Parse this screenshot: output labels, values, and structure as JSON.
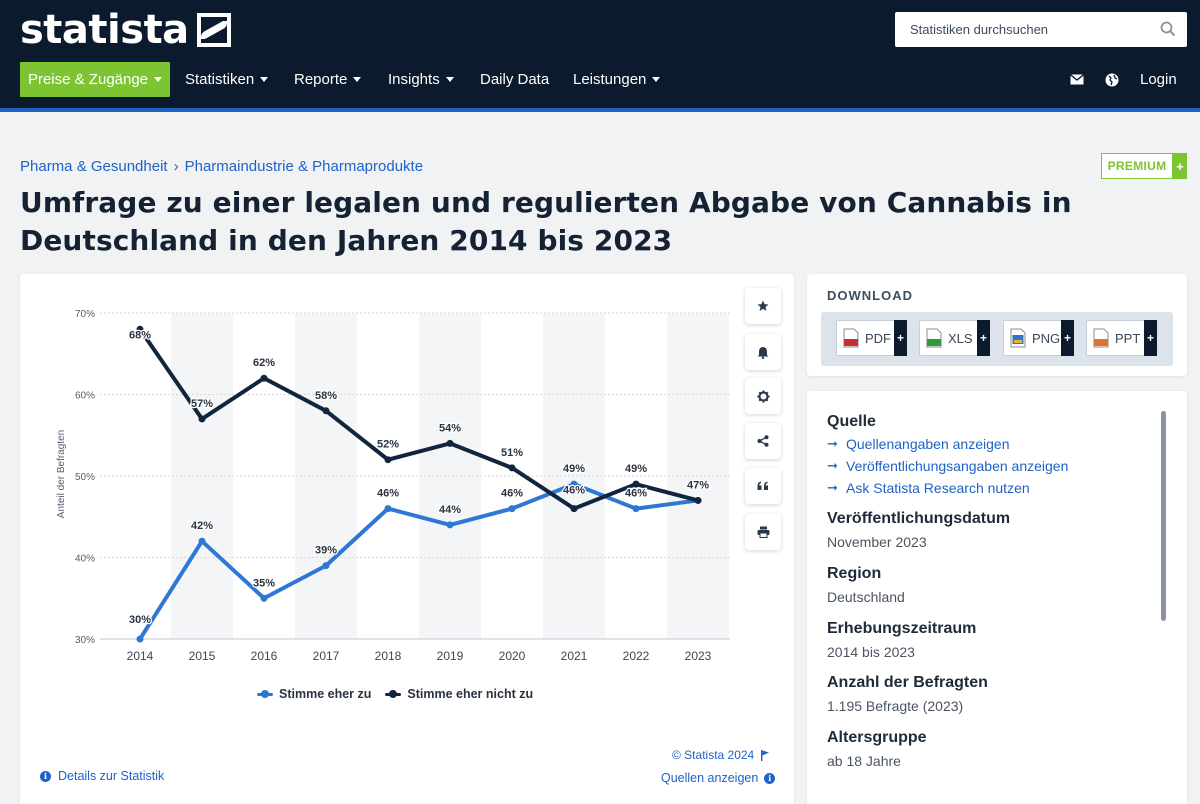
{
  "header": {
    "logo_text": "statista",
    "search_placeholder": "Statistiken durchsuchen",
    "nav": {
      "cta": "Preise & Zugänge",
      "statistiken": "Statistiken",
      "reporte": "Reporte",
      "insights": "Insights",
      "daily_data": "Daily Data",
      "leistungen": "Leistungen",
      "login": "Login"
    },
    "colors": {
      "navy": "#0b1a2c",
      "green": "#7cc432",
      "blue_rule": "#1f62c6"
    }
  },
  "breadcrumb": [
    "Pharma & Gesundheit",
    "Pharmaindustrie & Pharmaprodukte"
  ],
  "breadcrumb_separator": "›",
  "premium": {
    "label": "PREMIUM",
    "plus": "+"
  },
  "page_title": "Umfrage zu einer legalen und regulierten Abgabe von Cannabis in Deutschland in den Jahren 2014 bis 2023",
  "chart_data": {
    "type": "line",
    "x": [
      "2014",
      "2015",
      "2016",
      "2017",
      "2018",
      "2019",
      "2020",
      "2021",
      "2022",
      "2023"
    ],
    "series": [
      {
        "name": "Stimme eher zu",
        "color": "#2e77d4",
        "values": [
          30,
          42,
          35,
          39,
          46,
          44,
          46,
          49,
          46,
          47
        ]
      },
      {
        "name": "Stimme eher nicht zu",
        "color": "#11253f",
        "values": [
          68,
          57,
          62,
          58,
          52,
          54,
          51,
          46,
          49,
          47
        ]
      }
    ],
    "data_labels": {
      "Stimme eher zu": [
        "30%",
        "42%",
        "35%",
        "39%",
        "46%",
        "44%",
        "46%",
        "49%",
        "46%",
        ""
      ],
      "Stimme eher nicht zu": [
        "68%",
        "57%",
        "62%",
        "58%",
        "52%",
        "54%",
        "51%",
        "46%",
        "49%",
        "47%"
      ]
    },
    "ylabel": "Anteil der Befragten",
    "xlabel": "",
    "ylim": [
      30,
      70
    ],
    "yticks": [
      "30%",
      "40%",
      "50%",
      "60%",
      "70%"
    ],
    "grid": true,
    "alternating_bands": true,
    "legend_position": "bottom-center"
  },
  "chart_footer": {
    "copyright": "© Statista 2024",
    "details": "Details zur Statistik",
    "sources": "Quellen anzeigen"
  },
  "download": {
    "title": "DOWNLOAD",
    "formats": [
      {
        "label": "PDF",
        "icon": "pdf-file-icon",
        "color": "#c8302f"
      },
      {
        "label": "XLS",
        "icon": "xls-file-icon",
        "color": "#2f9a3a"
      },
      {
        "label": "PNG",
        "icon": "png-file-icon",
        "color": "#2f76c6"
      },
      {
        "label": "PPT",
        "icon": "ppt-file-icon",
        "color": "#e0742a"
      }
    ],
    "plus": "+"
  },
  "sidebar_tools": [
    "star-icon",
    "bell-icon",
    "gear-icon",
    "share-icon",
    "quote-icon",
    "print-icon"
  ],
  "meta": {
    "source_heading": "Quelle",
    "source_links": [
      "Quellenangaben anzeigen",
      "Veröffentlichungsangaben anzeigen",
      "Ask Statista Research nutzen"
    ],
    "release_date_label": "Veröffentlichungsdatum",
    "release_date": "November 2023",
    "region_label": "Region",
    "region": "Deutschland",
    "survey_period_label": "Erhebungszeitraum",
    "survey_period": "2014 bis 2023",
    "respondents_label": "Anzahl der Befragten",
    "respondents": "1.195 Befragte (2023)",
    "age_label": "Altersgruppe",
    "age": "ab 18 Jahre"
  }
}
